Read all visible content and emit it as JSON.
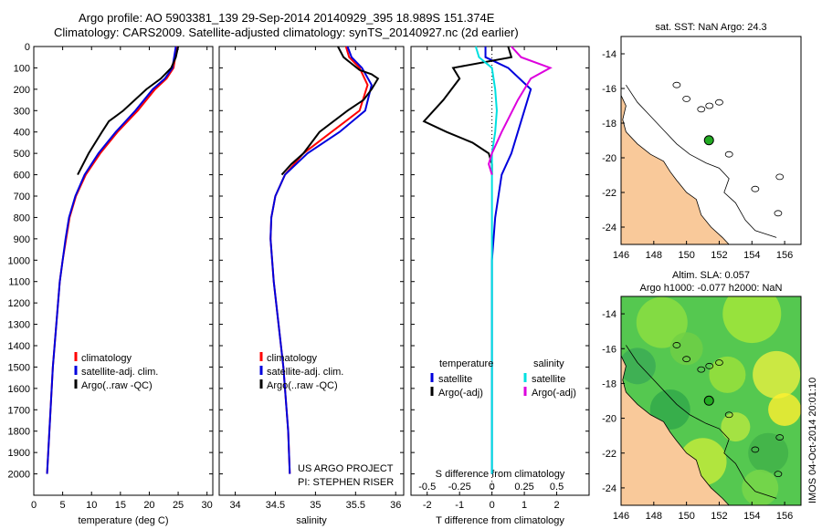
{
  "header": {
    "title_line1": "Argo profile: AO 5903381_139 29-Sep-2014 20140929_395 18.989S 151.374E",
    "title_line2": "Climatology: CARS2009. Satellite-adjusted climatology: synTS_20140927.nc (2d earlier)"
  },
  "side_stamp": "IMOS 04-Oct-2014 20:01:10",
  "colors": {
    "climatology": "#ff0000",
    "satellite": "#0000dd",
    "argo": "#000000",
    "salinity_satellite": "#00e0e0",
    "salinity_argo": "#dd00dd",
    "land": "#f9c99a",
    "argo_dot": "#22aa22"
  },
  "chart_data": [
    {
      "type": "line",
      "panel": "temperature",
      "xlabel": "temperature (deg C)",
      "ylabel": "",
      "xlim": [
        0,
        31
      ],
      "ylim": [
        2100,
        0
      ],
      "xticks": [
        0,
        5,
        10,
        15,
        20,
        25,
        30
      ],
      "yticks": [
        0,
        100,
        200,
        300,
        400,
        500,
        600,
        700,
        800,
        900,
        1000,
        1100,
        1200,
        1300,
        1400,
        1500,
        1600,
        1700,
        1800,
        1900,
        2000
      ],
      "legend": [
        "climatology",
        "satellite-adj. clim.",
        "Argo(..raw -QC)"
      ],
      "legend_position": "lower-center",
      "series": [
        {
          "name": "climatology",
          "x": [
            24.8,
            24.2,
            23.0,
            21.0,
            18.0,
            14.5,
            11.5,
            9.0,
            7.3,
            6.2,
            5.6,
            5.0,
            4.5,
            4.2,
            3.9,
            3.6,
            3.3,
            3.1,
            2.9,
            2.7,
            2.5,
            2.3
          ],
          "y": [
            0,
            100,
            150,
            200,
            300,
            400,
            500,
            600,
            700,
            800,
            900,
            1000,
            1100,
            1200,
            1300,
            1400,
            1500,
            1600,
            1700,
            1800,
            1900,
            2000
          ]
        },
        {
          "name": "satellite-adj. clim.",
          "x": [
            24.6,
            24.0,
            22.7,
            20.6,
            17.6,
            14.2,
            11.2,
            8.8,
            7.2,
            6.1,
            5.5,
            5.0,
            4.5,
            4.2,
            3.9,
            3.6,
            3.3,
            3.1,
            2.9,
            2.7,
            2.5,
            2.3
          ],
          "y": [
            0,
            100,
            150,
            200,
            300,
            400,
            500,
            600,
            700,
            800,
            900,
            1000,
            1100,
            1200,
            1300,
            1400,
            1500,
            1600,
            1700,
            1800,
            1900,
            2000
          ]
        },
        {
          "name": "Argo(..raw -QC)",
          "x": [
            25.0,
            24.6,
            23.8,
            22.0,
            19.5,
            15.5,
            13.0,
            11.8,
            9.5,
            7.6
          ],
          "y": [
            0,
            50,
            100,
            150,
            200,
            300,
            350,
            400,
            500,
            600
          ]
        }
      ]
    },
    {
      "type": "line",
      "panel": "salinity",
      "xlabel": "salinity",
      "xlim": [
        33.8,
        36.1
      ],
      "ylim": [
        2100,
        0
      ],
      "xticks": [
        34,
        34.5,
        35,
        35.5,
        36
      ],
      "legend": [
        "climatology",
        "satellite-adj. clim.",
        "Argo(..raw -QC)"
      ],
      "legend_position": "lower-center",
      "annotation": [
        "US ARGO PROJECT",
        "PI: STEPHEN RISER"
      ],
      "series": [
        {
          "name": "climatology",
          "x": [
            35.38,
            35.42,
            35.55,
            35.65,
            35.55,
            35.2,
            34.85,
            34.62,
            34.5,
            34.45,
            34.44,
            34.46,
            34.48,
            34.51,
            34.54,
            34.57,
            34.6,
            34.62,
            34.64,
            34.66,
            34.67,
            34.68
          ],
          "y": [
            0,
            50,
            100,
            180,
            300,
            400,
            500,
            600,
            700,
            800,
            900,
            1000,
            1100,
            1200,
            1300,
            1400,
            1500,
            1600,
            1700,
            1800,
            1900,
            2000
          ]
        },
        {
          "name": "satellite-adj. clim.",
          "x": [
            35.4,
            35.45,
            35.58,
            35.7,
            35.62,
            35.3,
            34.9,
            34.62,
            34.5,
            34.45,
            34.44,
            34.46,
            34.48,
            34.51,
            34.54,
            34.57,
            34.6,
            34.62,
            34.64,
            34.66,
            34.67,
            34.68
          ],
          "y": [
            0,
            50,
            100,
            180,
            300,
            400,
            500,
            600,
            700,
            800,
            900,
            1000,
            1100,
            1200,
            1300,
            1400,
            1500,
            1600,
            1700,
            1800,
            1900,
            2000
          ]
        },
        {
          "name": "Argo(..raw -QC)",
          "x": [
            35.28,
            35.35,
            35.55,
            35.7,
            35.78,
            35.7,
            35.6,
            35.4,
            35.05,
            34.85,
            34.7,
            34.58
          ],
          "y": [
            0,
            50,
            110,
            130,
            150,
            200,
            250,
            300,
            400,
            500,
            550,
            600
          ]
        }
      ]
    },
    {
      "type": "line",
      "panel": "difference",
      "xlabel": "T difference from climatology",
      "xlabel_top": "S difference from climatology",
      "xlim": [
        -2.5,
        3.0
      ],
      "ylim": [
        2100,
        0
      ],
      "xticks": [
        -2,
        -1,
        0,
        1,
        2
      ],
      "xtick_labels_s": [
        "-0.5",
        "-0.25",
        "0",
        "0.25",
        "0.5"
      ],
      "legend_temperature": {
        "title": "temperature",
        "items": [
          "satellite",
          "Argo(-adj)"
        ]
      },
      "legend_salinity": {
        "title": "salinity",
        "items": [
          "satellite",
          "Argo(-adj)"
        ]
      },
      "series": [
        {
          "name": "temperature satellite",
          "x": [
            -0.2,
            -0.2,
            0.5,
            1.2,
            1.0,
            0.8,
            0.6,
            0.3,
            0.2,
            0.1,
            0.05,
            0.0,
            0.0,
            0.0,
            0.0,
            0.0,
            0.0,
            0.0,
            0.0,
            0.0
          ],
          "y": [
            0,
            50,
            100,
            200,
            300,
            400,
            500,
            600,
            700,
            800,
            900,
            1000,
            1100,
            1200,
            1300,
            1400,
            1500,
            1600,
            1800,
            2000
          ]
        },
        {
          "name": "temperature Argo(-adj)",
          "x": [
            0.5,
            0.6,
            -1.2,
            -1.0,
            -1.5,
            -2.1,
            -1.4,
            -0.6,
            -0.1,
            0.0,
            0.0
          ],
          "y": [
            0,
            50,
            100,
            150,
            250,
            350,
            400,
            450,
            500,
            550,
            600
          ]
        },
        {
          "name": "salinity satellite",
          "x": [
            -0.5,
            -0.4,
            0.0,
            0.1,
            0.15,
            0.1,
            0.0,
            0.0,
            0.0,
            0.0,
            0.0,
            0.0,
            0.0,
            0.0,
            0.0,
            0.0,
            0.0,
            0.0,
            0.0,
            0.0
          ],
          "y": [
            0,
            50,
            100,
            200,
            300,
            400,
            500,
            600,
            700,
            800,
            900,
            1000,
            1100,
            1200,
            1300,
            1400,
            1500,
            1600,
            1800,
            2000
          ]
        },
        {
          "name": "salinity Argo(-adj)",
          "x": [
            0.6,
            0.9,
            1.8,
            1.2,
            0.8,
            0.3,
            0.0,
            -0.1,
            0.0
          ],
          "y": [
            0,
            50,
            100,
            150,
            250,
            400,
            500,
            550,
            600
          ]
        }
      ]
    },
    {
      "type": "scatter",
      "panel": "sst-map",
      "title": "sat. SST: NaN Argo: 24.3",
      "xlim": [
        146,
        157
      ],
      "ylim": [
        -25,
        -13
      ],
      "xticks": [
        146,
        148,
        150,
        152,
        154,
        156
      ],
      "yticks": [
        -14,
        -16,
        -18,
        -20,
        -22,
        -24
      ],
      "points": [
        {
          "x": 151.374,
          "y": -18.989
        }
      ]
    },
    {
      "type": "heatmap",
      "panel": "sla-map",
      "title": "Altim. SLA: 0.057",
      "subtitle": "Argo h1000: -0.077 h2000: NaN",
      "xlim": [
        146,
        157
      ],
      "ylim": [
        -25,
        -13
      ],
      "xticks": [
        146,
        148,
        150,
        152,
        154,
        156
      ],
      "yticks": [
        -14,
        -16,
        -18,
        -20,
        -22,
        -24
      ],
      "points": [
        {
          "x": 151.374,
          "y": -18.989
        }
      ]
    }
  ]
}
